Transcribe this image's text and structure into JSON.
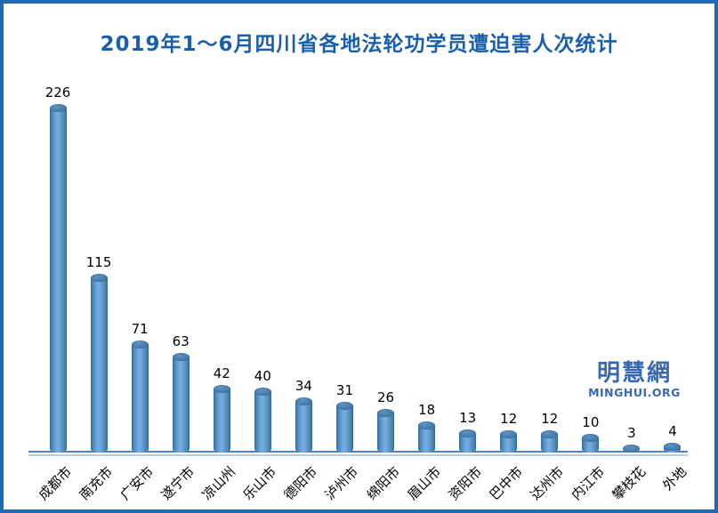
{
  "chart_data": {
    "type": "bar",
    "style": "3d-cylinder",
    "title": "2019年1～6月四川省各地法轮功学员遭迫害人次统计",
    "categories": [
      "成都市",
      "南充市",
      "广安市",
      "遂宁市",
      "凉山州",
      "乐山市",
      "德阳市",
      "泸州市",
      "绵阳市",
      "眉山市",
      "资阳市",
      "巴中市",
      "达州市",
      "内江市",
      "攀枝花",
      "外地"
    ],
    "values": [
      226,
      115,
      71,
      63,
      42,
      40,
      34,
      31,
      26,
      18,
      13,
      12,
      12,
      10,
      3,
      4
    ],
    "data_labels_shown": true,
    "xlabel": "",
    "ylabel": "",
    "ylim": [
      0,
      240
    ],
    "grid": false,
    "legend": false,
    "colors": {
      "bar_fill": "#5b9bd5",
      "bar_edge": "#38688f",
      "title_text": "#1a5fad",
      "data_label_text": "#000000",
      "axis_line": "#4f81bd",
      "axis_line_light": "#b7cce4",
      "frame_border": "#1e6bb8"
    }
  },
  "watermark": {
    "cjk": "明慧網",
    "latin": "MINGHUI.ORG",
    "color": "#3768b1"
  }
}
